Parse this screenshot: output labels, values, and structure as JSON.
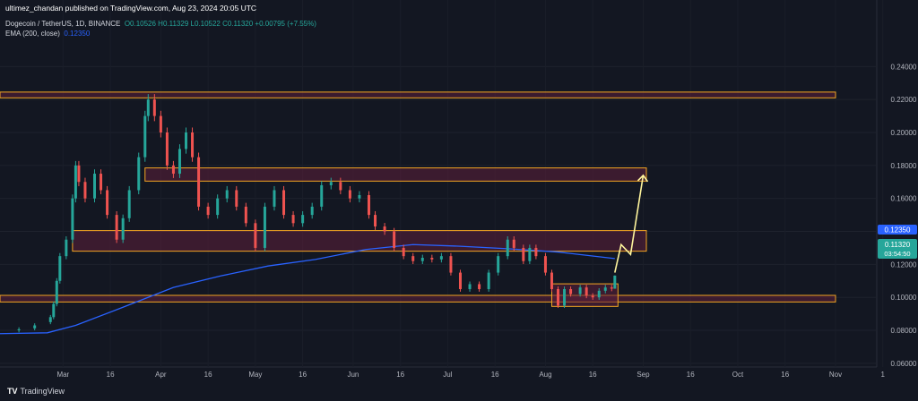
{
  "header": {
    "published": "ultimez_chandan published on TradingView.com, Aug 23, 2024 20:05 UTC",
    "symbol": "Dogecoin / TetherUS, 1D, BINANCE",
    "ohlc": "O0.10526 H0.11329 L0.10522 C0.11320 +0.00795 (+7.55%)",
    "ema_label": "EMA (200, close)",
    "ema_value": "0.12350"
  },
  "price_axis": {
    "ticks": [
      "0.24000",
      "0.22000",
      "0.20000",
      "0.18000",
      "0.16000",
      "0.14000",
      "0.12000",
      "0.10000",
      "0.08000",
      "0.06000"
    ],
    "ema_tag": "0.12350",
    "price_tag": "0.11320",
    "countdown": "03:54:50"
  },
  "time_axis": {
    "ticks": [
      "Mar",
      "16",
      "Apr",
      "16",
      "May",
      "16",
      "Jun",
      "16",
      "Jul",
      "16",
      "Aug",
      "16",
      "Sep",
      "16",
      "Oct",
      "16",
      "Nov",
      "1"
    ]
  },
  "footer": {
    "logo": "TV",
    "brand": "TradingView"
  },
  "colors": {
    "background": "#131722",
    "up": "#26a69a",
    "down": "#ef5350",
    "ema": "#2962ff",
    "zone_border": "#f5a623",
    "zone_fill": "#5c1f3a",
    "projection": "#fff59d"
  },
  "chart_data": {
    "type": "candlestick",
    "symbol": "DOGEUSDT",
    "interval": "1D",
    "ylim": [
      0.055,
      0.245
    ],
    "overlay": {
      "indicator": "EMA (200, close)",
      "last": 0.1235
    },
    "candles": [
      {
        "d": "2024-02-16",
        "o": 0.08,
        "c": 0.0806
      },
      {
        "d": "2024-02-21",
        "o": 0.0812,
        "c": 0.083
      },
      {
        "d": "2024-02-26",
        "o": 0.085,
        "c": 0.088
      },
      {
        "d": "2024-02-27",
        "o": 0.088,
        "c": 0.096
      },
      {
        "d": "2024-02-28",
        "o": 0.096,
        "c": 0.11
      },
      {
        "d": "2024-02-29",
        "o": 0.11,
        "c": 0.125
      },
      {
        "d": "2024-03-02",
        "o": 0.125,
        "c": 0.135
      },
      {
        "d": "2024-03-04",
        "o": 0.135,
        "c": 0.16
      },
      {
        "d": "2024-03-05",
        "o": 0.16,
        "c": 0.18
      },
      {
        "d": "2024-03-06",
        "o": 0.18,
        "c": 0.17
      },
      {
        "d": "2024-03-08",
        "o": 0.17,
        "c": 0.16
      },
      {
        "d": "2024-03-11",
        "o": 0.16,
        "c": 0.175
      },
      {
        "d": "2024-03-13",
        "o": 0.175,
        "c": 0.165
      },
      {
        "d": "2024-03-15",
        "o": 0.165,
        "c": 0.15
      },
      {
        "d": "2024-03-18",
        "o": 0.15,
        "c": 0.135
      },
      {
        "d": "2024-03-20",
        "o": 0.135,
        "c": 0.148
      },
      {
        "d": "2024-03-22",
        "o": 0.148,
        "c": 0.165
      },
      {
        "d": "2024-03-25",
        "o": 0.165,
        "c": 0.185
      },
      {
        "d": "2024-03-27",
        "o": 0.185,
        "c": 0.21
      },
      {
        "d": "2024-03-28",
        "o": 0.21,
        "c": 0.22
      },
      {
        "d": "2024-03-30",
        "o": 0.22,
        "c": 0.21
      },
      {
        "d": "2024-04-01",
        "o": 0.21,
        "c": 0.2
      },
      {
        "d": "2024-04-03",
        "o": 0.2,
        "c": 0.18
      },
      {
        "d": "2024-04-05",
        "o": 0.18,
        "c": 0.175
      },
      {
        "d": "2024-04-07",
        "o": 0.175,
        "c": 0.19
      },
      {
        "d": "2024-04-09",
        "o": 0.19,
        "c": 0.2
      },
      {
        "d": "2024-04-11",
        "o": 0.2,
        "c": 0.185
      },
      {
        "d": "2024-04-13",
        "o": 0.185,
        "c": 0.155
      },
      {
        "d": "2024-04-16",
        "o": 0.155,
        "c": 0.15
      },
      {
        "d": "2024-04-19",
        "o": 0.15,
        "c": 0.16
      },
      {
        "d": "2024-04-22",
        "o": 0.16,
        "c": 0.165
      },
      {
        "d": "2024-04-25",
        "o": 0.165,
        "c": 0.155
      },
      {
        "d": "2024-04-28",
        "o": 0.155,
        "c": 0.145
      },
      {
        "d": "2024-05-01",
        "o": 0.145,
        "c": 0.13
      },
      {
        "d": "2024-05-04",
        "o": 0.13,
        "c": 0.155
      },
      {
        "d": "2024-05-07",
        "o": 0.155,
        "c": 0.165
      },
      {
        "d": "2024-05-10",
        "o": 0.165,
        "c": 0.15
      },
      {
        "d": "2024-05-13",
        "o": 0.15,
        "c": 0.145
      },
      {
        "d": "2024-05-16",
        "o": 0.145,
        "c": 0.15
      },
      {
        "d": "2024-05-19",
        "o": 0.15,
        "c": 0.155
      },
      {
        "d": "2024-05-22",
        "o": 0.155,
        "c": 0.168
      },
      {
        "d": "2024-05-25",
        "o": 0.168,
        "c": 0.17
      },
      {
        "d": "2024-05-28",
        "o": 0.17,
        "c": 0.165
      },
      {
        "d": "2024-05-31",
        "o": 0.165,
        "c": 0.16
      },
      {
        "d": "2024-06-03",
        "o": 0.16,
        "c": 0.162
      },
      {
        "d": "2024-06-06",
        "o": 0.162,
        "c": 0.15
      },
      {
        "d": "2024-06-08",
        "o": 0.15,
        "c": 0.143
      },
      {
        "d": "2024-06-11",
        "o": 0.143,
        "c": 0.14
      },
      {
        "d": "2024-06-14",
        "o": 0.14,
        "c": 0.13
      },
      {
        "d": "2024-06-17",
        "o": 0.13,
        "c": 0.125
      },
      {
        "d": "2024-06-20",
        "o": 0.125,
        "c": 0.122
      },
      {
        "d": "2024-06-23",
        "o": 0.122,
        "c": 0.124
      },
      {
        "d": "2024-06-26",
        "o": 0.124,
        "c": 0.123
      },
      {
        "d": "2024-06-29",
        "o": 0.123,
        "c": 0.125
      },
      {
        "d": "2024-07-02",
        "o": 0.125,
        "c": 0.115
      },
      {
        "d": "2024-07-05",
        "o": 0.115,
        "c": 0.105
      },
      {
        "d": "2024-07-08",
        "o": 0.105,
        "c": 0.108
      },
      {
        "d": "2024-07-11",
        "o": 0.108,
        "c": 0.105
      },
      {
        "d": "2024-07-14",
        "o": 0.105,
        "c": 0.115
      },
      {
        "d": "2024-07-17",
        "o": 0.115,
        "c": 0.125
      },
      {
        "d": "2024-07-20",
        "o": 0.125,
        "c": 0.135
      },
      {
        "d": "2024-07-22",
        "o": 0.135,
        "c": 0.13
      },
      {
        "d": "2024-07-25",
        "o": 0.13,
        "c": 0.122
      },
      {
        "d": "2024-07-27",
        "o": 0.122,
        "c": 0.13
      },
      {
        "d": "2024-07-29",
        "o": 0.13,
        "c": 0.125
      },
      {
        "d": "2024-08-01",
        "o": 0.125,
        "c": 0.115
      },
      {
        "d": "2024-08-03",
        "o": 0.115,
        "c": 0.105
      },
      {
        "d": "2024-08-05",
        "o": 0.105,
        "c": 0.095
      },
      {
        "d": "2024-08-07",
        "o": 0.095,
        "c": 0.105
      },
      {
        "d": "2024-08-09",
        "o": 0.105,
        "c": 0.102
      },
      {
        "d": "2024-08-12",
        "o": 0.102,
        "c": 0.106
      },
      {
        "d": "2024-08-14",
        "o": 0.106,
        "c": 0.101
      },
      {
        "d": "2024-08-16",
        "o": 0.101,
        "c": 0.1
      },
      {
        "d": "2024-08-18",
        "o": 0.1,
        "c": 0.104
      },
      {
        "d": "2024-08-20",
        "o": 0.104,
        "c": 0.106
      },
      {
        "d": "2024-08-22",
        "o": 0.106,
        "c": 0.1053
      },
      {
        "d": "2024-08-23",
        "o": 0.10526,
        "h": 0.11329,
        "l": 0.10522,
        "c": 0.1132
      }
    ],
    "ema": [
      {
        "d": "2024-02-10",
        "v": 0.078
      },
      {
        "d": "2024-02-25",
        "v": 0.0785
      },
      {
        "d": "2024-03-05",
        "v": 0.083
      },
      {
        "d": "2024-03-20",
        "v": 0.094
      },
      {
        "d": "2024-04-05",
        "v": 0.106
      },
      {
        "d": "2024-04-20",
        "v": 0.113
      },
      {
        "d": "2024-05-05",
        "v": 0.119
      },
      {
        "d": "2024-05-20",
        "v": 0.123
      },
      {
        "d": "2024-06-05",
        "v": 0.129
      },
      {
        "d": "2024-06-20",
        "v": 0.132
      },
      {
        "d": "2024-07-05",
        "v": 0.131
      },
      {
        "d": "2024-07-20",
        "v": 0.1295
      },
      {
        "d": "2024-08-05",
        "v": 0.1275
      },
      {
        "d": "2024-08-23",
        "v": 0.1235
      }
    ],
    "zones": [
      {
        "from": "2024-02-10",
        "to": "2024-11-01",
        "low": 0.221,
        "high": 0.2245
      },
      {
        "from": "2024-03-27",
        "to": "2024-09-02",
        "low": 0.1705,
        "high": 0.1785
      },
      {
        "from": "2024-03-04",
        "to": "2024-09-02",
        "low": 0.128,
        "high": 0.1405
      },
      {
        "from": "2024-02-10",
        "to": "2024-11-01",
        "low": 0.0972,
        "high": 0.1012
      },
      {
        "from": "2024-08-03",
        "to": "2024-08-24",
        "low": 0.0945,
        "high": 0.1082
      }
    ],
    "projection": [
      {
        "d": "2024-08-23",
        "v": 0.115
      },
      {
        "d": "2024-08-25",
        "v": 0.132
      },
      {
        "d": "2024-08-28",
        "v": 0.126
      },
      {
        "d": "2024-09-01",
        "v": 0.174
      }
    ]
  }
}
